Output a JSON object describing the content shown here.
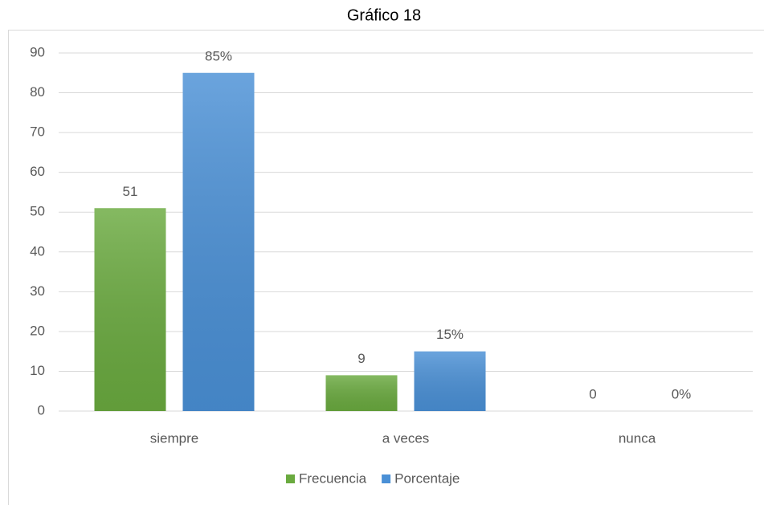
{
  "chart_data": {
    "type": "bar",
    "title": "Gráfico 18",
    "categories": [
      "siempre",
      "a veces",
      "nunca"
    ],
    "series": [
      {
        "name": "Frecuencia",
        "color": "#6aaa3f",
        "values": [
          51,
          9,
          0
        ]
      },
      {
        "name": "Porcentaje",
        "color": "#4a90d6",
        "values": [
          85,
          15,
          0
        ],
        "value_labels": [
          "85%",
          "15%",
          "0%"
        ]
      }
    ],
    "ylim": [
      0,
      90
    ],
    "yticks": [
      0,
      10,
      20,
      30,
      40,
      50,
      60,
      70,
      80,
      90
    ],
    "grid": true,
    "legend": "bottom"
  }
}
